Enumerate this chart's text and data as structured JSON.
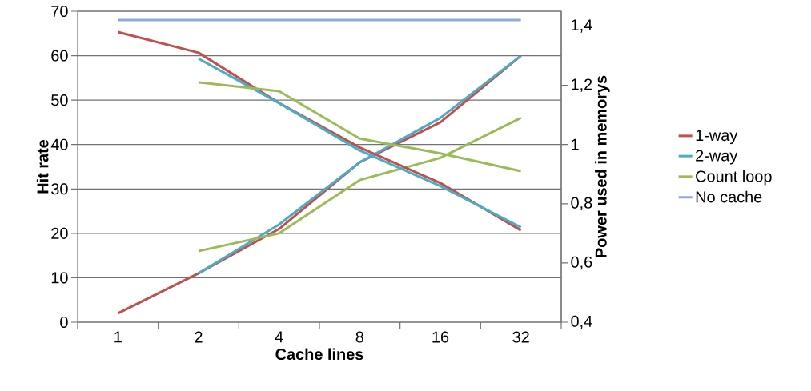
{
  "chart_data": {
    "type": "line",
    "xlabel": "Cache lines",
    "ylabel": "Hit rate",
    "y2label": "Power used in memorys",
    "categories": [
      "1",
      "2",
      "4",
      "8",
      "16",
      "32"
    ],
    "series": [
      {
        "name": "1-way",
        "color": "#c0504d",
        "values": [
          2,
          11,
          21,
          36,
          45,
          60
        ]
      },
      {
        "color": "#c0504d",
        "axis": "y2",
        "values": [
          1.38,
          1.31,
          1.14,
          0.99,
          0.87,
          0.71
        ]
      },
      {
        "name": "2-way",
        "color": "#4bacc6",
        "values": [
          null,
          11,
          22,
          36,
          46,
          60
        ]
      },
      {
        "color": "#4bacc6",
        "axis": "y2",
        "values": [
          null,
          1.29,
          1.14,
          0.98,
          0.86,
          0.72
        ]
      },
      {
        "name": "Count loop",
        "color": "#9bbb59",
        "values": [
          null,
          16,
          20,
          32,
          37,
          46
        ]
      },
      {
        "color": "#9bbb59",
        "axis": "y2",
        "values": [
          null,
          1.21,
          1.18,
          1.02,
          0.97,
          0.91
        ]
      },
      {
        "name": "No cache",
        "color": "#8eaadb",
        "axis": "y2",
        "values": [
          1.42,
          1.42,
          1.42,
          1.42,
          1.42,
          1.42
        ]
      }
    ],
    "ylim": [
      0,
      70
    ],
    "yticks": [
      0,
      10,
      20,
      30,
      40,
      50,
      60,
      70
    ],
    "y2lim": [
      0.4,
      1.45
    ],
    "y2ticks": [
      {
        "value": 0.4,
        "label": "0,4"
      },
      {
        "value": 0.6,
        "label": "0,6"
      },
      {
        "value": 0.8,
        "label": "0,8"
      },
      1,
      {
        "value": 1.2,
        "label": "1,2"
      },
      {
        "value": 1.4,
        "label": "1,4"
      }
    ],
    "grid": "y",
    "legend": "right",
    "marker": "none",
    "line_style": "solid"
  }
}
